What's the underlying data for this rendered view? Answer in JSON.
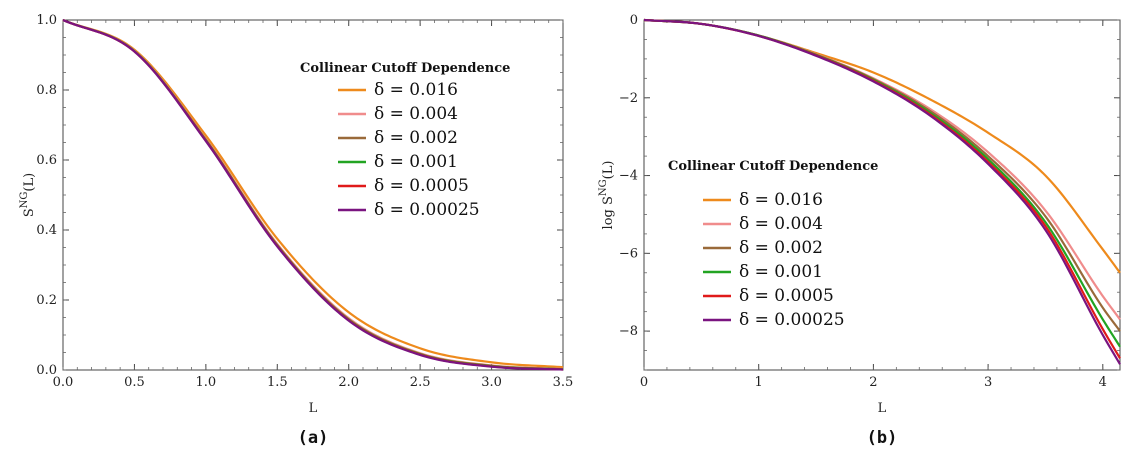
{
  "chart_data": [
    {
      "type": "line",
      "panel_label": "(a)",
      "legend_title": "Collinear Cutoff Dependence",
      "xlabel": "L",
      "ylabel": "S",
      "ylabel_sup": "NG",
      "ylabel_suffix": "(L)",
      "xlim": [
        0,
        3.5
      ],
      "ylim": [
        0,
        1.0
      ],
      "xticks": [
        "0.0",
        "0.5",
        "1.0",
        "1.5",
        "2.0",
        "2.5",
        "3.0",
        "3.5"
      ],
      "xtick_values": [
        0,
        0.5,
        1.0,
        1.5,
        2.0,
        2.5,
        3.0,
        3.5
      ],
      "yticks": [
        "0.0",
        "0.2",
        "0.4",
        "0.6",
        "0.8",
        "1.0"
      ],
      "ytick_values": [
        0,
        0.2,
        0.4,
        0.6,
        0.8,
        1.0
      ],
      "legend_placement": "top-right",
      "x": [
        0,
        0.5,
        1.0,
        1.5,
        2.0,
        2.5,
        3.0,
        3.5
      ],
      "series": [
        {
          "name": "δ = 0.016",
          "color": "#ee8a1c",
          "values": [
            1.0,
            0.915,
            0.67,
            0.375,
            0.165,
            0.062,
            0.022,
            0.008
          ]
        },
        {
          "name": "δ = 0.004",
          "color": "#f08c8c",
          "values": [
            1.0,
            0.912,
            0.66,
            0.36,
            0.148,
            0.048,
            0.013,
            0.003
          ]
        },
        {
          "name": "δ = 0.002",
          "color": "#9a6a3a",
          "values": [
            1.0,
            0.911,
            0.658,
            0.357,
            0.145,
            0.046,
            0.012,
            0.002
          ]
        },
        {
          "name": "δ = 0.001",
          "color": "#22a422",
          "values": [
            1.0,
            0.911,
            0.656,
            0.355,
            0.143,
            0.045,
            0.011,
            0.002
          ]
        },
        {
          "name": "δ = 0.0005",
          "color": "#e01a1a",
          "values": [
            1.0,
            0.91,
            0.655,
            0.354,
            0.142,
            0.044,
            0.01,
            0.0015
          ]
        },
        {
          "name": "δ = 0.00025",
          "color": "#7a1480",
          "values": [
            1.0,
            0.91,
            0.654,
            0.353,
            0.141,
            0.043,
            0.0095,
            0.0012
          ]
        }
      ]
    },
    {
      "type": "line",
      "panel_label": "(b)",
      "legend_title": "Collinear Cutoff Dependence",
      "xlabel": "L",
      "ylabel": "log S",
      "ylabel_sup": "NG",
      "ylabel_suffix": "(L)",
      "xlim": [
        0,
        4.15
      ],
      "ylim": [
        -9,
        0
      ],
      "xticks": [
        "0",
        "1",
        "2",
        "3",
        "4"
      ],
      "xtick_values": [
        0,
        1,
        2,
        3,
        4
      ],
      "yticks": [
        "-8",
        "-6",
        "-4",
        "-2",
        "0"
      ],
      "ytick_values": [
        -8,
        -6,
        -4,
        -2,
        0
      ],
      "legend_placement": "center-left",
      "x": [
        0,
        0.5,
        1.0,
        1.5,
        2.0,
        2.5,
        3.0,
        3.5,
        4.0,
        4.15
      ],
      "series": [
        {
          "name": "δ = 0.016",
          "color": "#ee8a1c",
          "values": [
            0,
            -0.1,
            -0.4,
            -0.85,
            -1.35,
            -2.05,
            -2.9,
            -4.0,
            -5.9,
            -6.5
          ]
        },
        {
          "name": "δ = 0.004",
          "color": "#f08c8c",
          "values": [
            0,
            -0.1,
            -0.4,
            -0.88,
            -1.5,
            -2.3,
            -3.4,
            -4.9,
            -7.1,
            -7.7
          ]
        },
        {
          "name": "δ = 0.002",
          "color": "#9a6a3a",
          "values": [
            0,
            -0.1,
            -0.4,
            -0.89,
            -1.52,
            -2.35,
            -3.5,
            -5.05,
            -7.4,
            -8.0
          ]
        },
        {
          "name": "δ = 0.001",
          "color": "#22a422",
          "values": [
            0,
            -0.1,
            -0.4,
            -0.9,
            -1.54,
            -2.4,
            -3.58,
            -5.2,
            -7.7,
            -8.4
          ]
        },
        {
          "name": "δ = 0.0005",
          "color": "#e01a1a",
          "values": [
            0,
            -0.1,
            -0.41,
            -0.91,
            -1.56,
            -2.44,
            -3.65,
            -5.3,
            -7.95,
            -8.7
          ]
        },
        {
          "name": "δ = 0.00025",
          "color": "#7a1480",
          "values": [
            0,
            -0.1,
            -0.41,
            -0.92,
            -1.58,
            -2.47,
            -3.7,
            -5.4,
            -8.1,
            -8.85
          ]
        }
      ]
    }
  ]
}
